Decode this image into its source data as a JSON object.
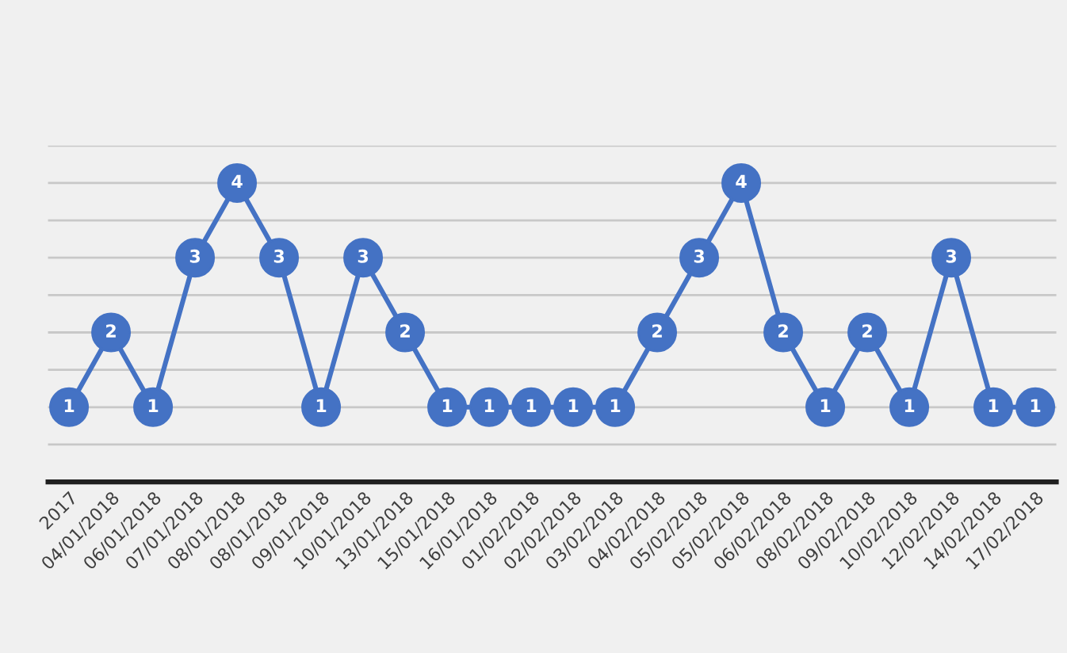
{
  "chart_data": {
    "type": "line",
    "categories": [
      "2017",
      "04/01/2018",
      "06/01/2018",
      "07/01/2018",
      "08/01/2018",
      "08/01/2018",
      "09/01/2018",
      "10/01/2018",
      "13/01/2018",
      "15/01/2018",
      "16/01/2018",
      "01/02/2018",
      "02/02/2018",
      "03/02/2018",
      "04/02/2018",
      "05/02/2018",
      "05/02/2018",
      "06/02/2018",
      "08/02/2018",
      "09/02/2018",
      "10/02/2018",
      "12/02/2018",
      "14/02/2018",
      "17/02/2018"
    ],
    "series": [
      {
        "color": "#4472c4",
        "values": [
          1,
          2,
          1,
          3,
          4,
          3,
          1,
          3,
          2,
          1,
          1,
          1,
          1,
          1,
          2,
          3,
          4,
          2,
          1,
          2,
          1,
          3,
          1,
          1
        ]
      }
    ],
    "ylim": [
      0,
      4.5
    ],
    "yticks": [
      {
        "value": 0.5,
        "label": null
      },
      {
        "value": 1,
        "label": null
      },
      {
        "value": 1.5,
        "label": null
      },
      {
        "value": 2,
        "label": null
      },
      {
        "value": 2.5,
        "label": null
      },
      {
        "value": 3,
        "label": null
      },
      {
        "value": 3.5,
        "label": null
      },
      {
        "value": 4,
        "label": null
      },
      {
        "value": 4.5,
        "label": null
      }
    ],
    "grid": "y",
    "tick_labels": "x",
    "marker": "circle",
    "line_style": "solid",
    "data_labels": true,
    "legend": false
  }
}
